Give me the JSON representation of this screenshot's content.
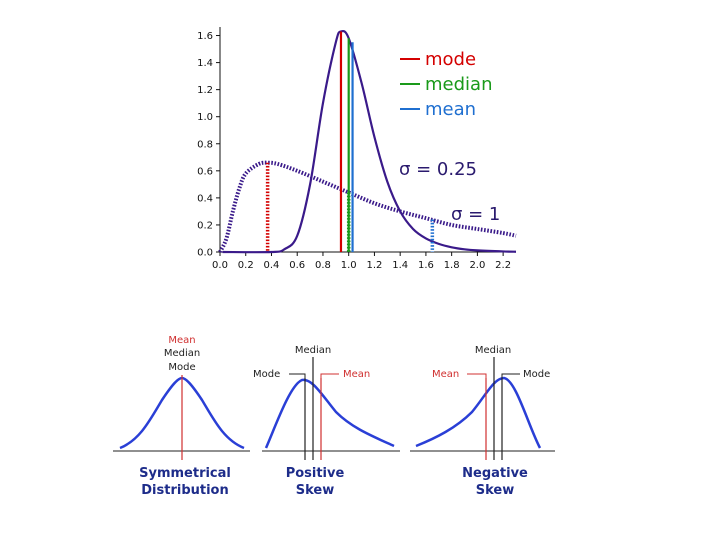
{
  "chart_data": [
    {
      "type": "line",
      "title": "",
      "xlabel": "",
      "ylabel": "",
      "xlim": [
        0,
        2.3
      ],
      "ylim": [
        0,
        1.7
      ],
      "x_ticks": [
        "0.0",
        "0.2",
        "0.4",
        "0.6",
        "0.8",
        "1.0",
        "1.2",
        "1.4",
        "1.6",
        "1.8",
        "2.0",
        "2.2"
      ],
      "y_ticks": [
        "0.0",
        "0.2",
        "0.4",
        "0.6",
        "0.8",
        "1.0",
        "1.2",
        "1.4",
        "1.6"
      ],
      "legend": [
        {
          "label": "mode",
          "color": "#d40000"
        },
        {
          "label": "median",
          "color": "#1a9a1a"
        },
        {
          "label": "mean",
          "color": "#1f6fd0"
        }
      ],
      "series": [
        {
          "name": "σ = 0.25",
          "style": "solid",
          "color": "#3a1a8a",
          "x": [
            0.02,
            0.4,
            0.5,
            0.6,
            0.7,
            0.8,
            0.9,
            0.94,
            1.0,
            1.1,
            1.2,
            1.3,
            1.4,
            1.5,
            1.6,
            1.7,
            1.8,
            1.9,
            2.0,
            2.2,
            2.3
          ],
          "y": [
            0.0,
            0.0,
            0.02,
            0.12,
            0.5,
            1.1,
            1.55,
            1.63,
            1.58,
            1.25,
            0.85,
            0.52,
            0.3,
            0.17,
            0.1,
            0.06,
            0.035,
            0.02,
            0.012,
            0.004,
            0.002
          ]
        },
        {
          "name": "σ = 1",
          "style": "dotted",
          "color": "#3a1a8a",
          "x": [
            0.0,
            0.05,
            0.1,
            0.15,
            0.2,
            0.3,
            0.37,
            0.45,
            0.6,
            0.8,
            1.0,
            1.2,
            1.4,
            1.6,
            1.8,
            2.0,
            2.2,
            2.3
          ],
          "y": [
            0.0,
            0.1,
            0.3,
            0.47,
            0.58,
            0.65,
            0.66,
            0.65,
            0.6,
            0.52,
            0.44,
            0.36,
            0.3,
            0.25,
            0.2,
            0.17,
            0.14,
            0.12
          ]
        }
      ],
      "markers": [
        {
          "series": "σ = 0.25",
          "kind": "mode",
          "x": 0.94,
          "y": 1.63
        },
        {
          "series": "σ = 0.25",
          "kind": "median",
          "x": 1.0,
          "y": 1.58
        },
        {
          "series": "σ = 0.25",
          "kind": "mean",
          "x": 1.03,
          "y": 1.55
        },
        {
          "series": "σ = 1",
          "kind": "mode",
          "x": 0.37,
          "y": 0.66
        },
        {
          "series": "σ = 1",
          "kind": "median",
          "x": 1.0,
          "y": 0.44
        },
        {
          "series": "σ = 1",
          "kind": "mean",
          "x": 1.65,
          "y": 0.24
        }
      ],
      "annotations": [
        {
          "text": "σ = 0.25",
          "x": 0.95,
          "y": 0.63
        },
        {
          "text": "σ = 1",
          "x": 1.3,
          "y": 0.27
        }
      ]
    }
  ],
  "skew": {
    "colors": {
      "curve": "#2a3fd6",
      "marker": "#d03030",
      "text": "#222222",
      "caption": "#1d2c8a"
    },
    "panels": [
      {
        "name": "symmetrical",
        "labels": {
          "mean": "Mean",
          "median": "Median",
          "mode": "Mode"
        },
        "caption": [
          "Symmetrical",
          "Distribution"
        ]
      },
      {
        "name": "positive",
        "labels": {
          "median": "Median",
          "mode": "Mode",
          "mean": "Mean"
        },
        "caption": [
          "Positive",
          "Skew"
        ]
      },
      {
        "name": "negative",
        "labels": {
          "median": "Median",
          "mean": "Mean",
          "mode": "Mode"
        },
        "caption": [
          "Negative",
          "Skew"
        ]
      }
    ]
  }
}
